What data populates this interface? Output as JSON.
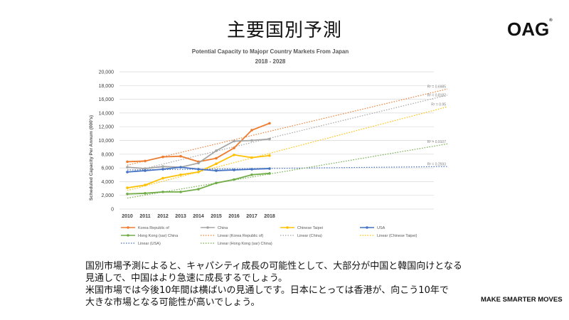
{
  "slide": {
    "title": "主要国別予測",
    "logo": "OAG",
    "tagline": "MAKE SMARTER MOVES",
    "body_lines": [
      "国別市場予測によると、キャパシティ成長の可能性として、大部分が中国と韓国向けとなる",
      "見通しで、中国はより急速に成長するでしょう。",
      "米国市場では今後10年間は横ばいの見通しです。日本にとっては香港が、向こう10年で",
      "大きな市場となる可能性が高いでしょう。"
    ]
  },
  "colors": {
    "korea": "#ED7D31",
    "china": "#A5A5A5",
    "taipei": "#FFC000",
    "usa": "#4472C4",
    "hongkong": "#70AD47",
    "grid": "#D9D9D9",
    "text": "#595959"
  },
  "chart_data": {
    "type": "line",
    "title": "Potential Capacity to Majopr Country Markets From Japan",
    "subtitle": "2018 - 2028",
    "ylabel": "Scheduled Capacity Per Annum (000's)",
    "xlabel": "",
    "x": [
      "2010",
      "2011",
      "2012",
      "2013",
      "2014",
      "2015",
      "2016",
      "2017",
      "2018"
    ],
    "ylim": [
      0,
      20000
    ],
    "yticks": [
      "0",
      "2,000",
      "4,000",
      "6,000",
      "8,000",
      "10,000",
      "12,000",
      "14,000",
      "16,000",
      "18,000",
      "20,000"
    ],
    "series": [
      {
        "key": "korea",
        "name": "Korea Republic of",
        "values": [
          6900,
          7000,
          7600,
          7700,
          6900,
          7400,
          8900,
          11500,
          12500
        ]
      },
      {
        "key": "china",
        "name": "China",
        "values": [
          6100,
          5900,
          6200,
          6100,
          6700,
          8500,
          9900,
          10000,
          10200
        ]
      },
      {
        "key": "taipei",
        "name": "Chinese Taipei",
        "values": [
          3100,
          3500,
          4500,
          5000,
          5400,
          6600,
          7900,
          7500,
          7800
        ]
      },
      {
        "key": "usa",
        "name": "USA",
        "values": [
          5400,
          5600,
          5800,
          6100,
          5800,
          5600,
          5700,
          5800,
          5900
        ]
      },
      {
        "key": "hongkong",
        "name": "Hong Kong (sar) China",
        "values": [
          2200,
          2300,
          2500,
          2500,
          2900,
          3800,
          4300,
          5000,
          5200
        ]
      }
    ],
    "trendlines": [
      {
        "key": "korea",
        "name": "Linear (Korea Republic of)",
        "start": 6400,
        "end": 17500,
        "r2": "R² = 0.6985"
      },
      {
        "key": "china",
        "name": "Linear (China)",
        "start": 5300,
        "end": 16600,
        "r2": "R² = 0.8182"
      },
      {
        "key": "taipei",
        "name": "Linear (Chinese Taipei)",
        "start": 2700,
        "end": 14900,
        "r2": "R² = 0.95"
      },
      {
        "key": "usa",
        "name": "Linear (USA)",
        "start": 5700,
        "end": 6200,
        "r2": "R² = 0.2593"
      },
      {
        "key": "hongkong",
        "name": "Linear (Hong Kong (sar) China)",
        "start": 1600,
        "end": 9500,
        "r2": "R² = 0.9107"
      }
    ],
    "trend_x_range": [
      2010,
      2028
    ],
    "legend_position": "bottom"
  }
}
